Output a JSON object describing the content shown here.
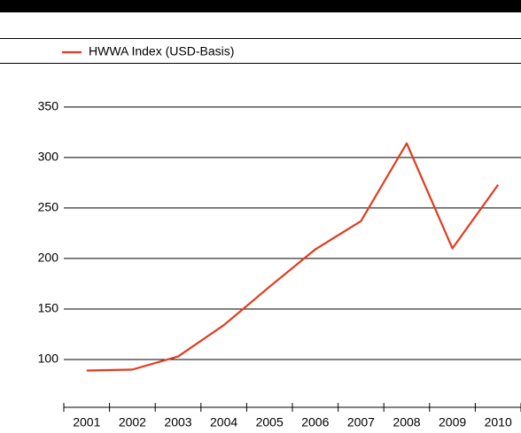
{
  "chart_data": {
    "type": "line",
    "categories": [
      "2001",
      "2002",
      "2003",
      "2004",
      "2005",
      "2006",
      "2007",
      "2008",
      "2009",
      "2010"
    ],
    "series": [
      {
        "name": "HWWA Index (USD-Basis)",
        "color": "#e03c1f",
        "values": [
          89,
          90,
          103,
          134,
          172,
          209,
          237,
          314,
          210,
          273
        ]
      }
    ],
    "ylim": [
      50,
      370
    ],
    "yticks": [
      100,
      150,
      200,
      250,
      300,
      350
    ],
    "grid": true
  }
}
